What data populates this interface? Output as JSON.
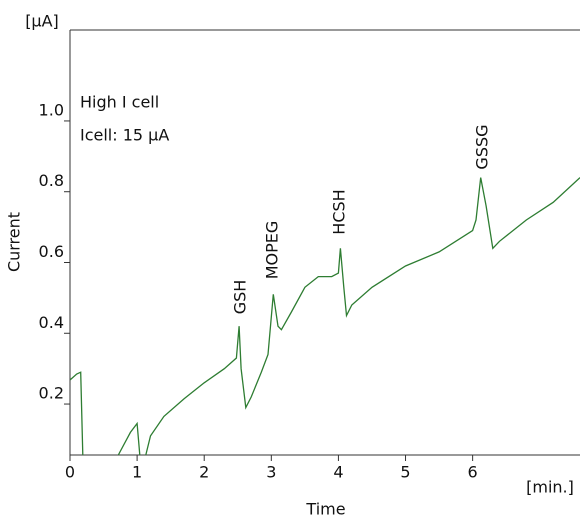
{
  "chart_data": {
    "type": "line",
    "x_label": "Time",
    "y_label": "Current",
    "x_unit": "[min.]",
    "y_unit": "[μA]",
    "annotations": [
      "High I cell",
      "Icell: 15 μA",
      "GSH",
      "MOPEG",
      "HCSH",
      "GSSG"
    ],
    "color": "#2e7d32",
    "x": [
      0,
      0.1,
      0.16,
      0.19,
      0.45,
      0.72,
      0.9,
      1.0,
      1.04,
      1.08,
      1.13,
      1.2,
      1.4,
      1.7,
      2.0,
      2.3,
      2.48,
      2.52,
      2.55,
      2.62,
      2.7,
      2.85,
      2.95,
      3.03,
      3.1,
      3.15,
      3.3,
      3.5,
      3.7,
      3.9,
      4.0,
      4.03,
      4.08,
      4.12,
      4.2,
      4.5,
      5.0,
      5.5,
      6.0,
      6.05,
      6.12,
      6.2,
      6.3,
      6.4,
      6.8,
      7.2,
      7.6
    ],
    "values": [
      0.268,
      0.285,
      0.29,
      0.056,
      null,
      0.056,
      0.12,
      0.145,
      0.056,
      null,
      0.056,
      0.11,
      0.165,
      0.215,
      0.26,
      0.3,
      0.33,
      0.42,
      0.3,
      0.19,
      0.22,
      0.29,
      0.34,
      0.51,
      0.42,
      0.41,
      0.46,
      0.53,
      0.56,
      0.56,
      0.57,
      0.64,
      0.53,
      0.45,
      0.48,
      0.53,
      0.59,
      0.63,
      0.69,
      0.72,
      0.84,
      0.76,
      0.64,
      0.66,
      0.72,
      0.77,
      0.84
    ],
    "xlim": [
      0,
      7.6
    ],
    "ylim": [
      0.056,
      1.257
    ],
    "xticks": [
      0,
      1,
      2,
      3,
      4,
      5,
      6
    ],
    "yticks": [
      0.2,
      0.4,
      0.6,
      0.8,
      {
        "value": 1,
        "label": "1.0"
      }
    ]
  }
}
